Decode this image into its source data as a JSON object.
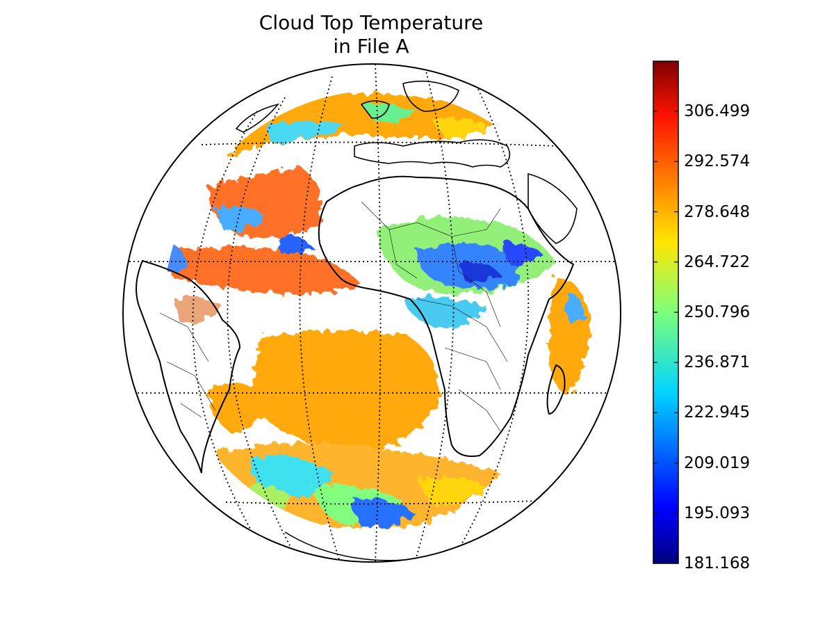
{
  "title": {
    "line1": "Cloud Top Temperature",
    "line2": "in File A"
  },
  "colorbar": {
    "colormap": "jet",
    "min": 181.168,
    "max": 320.4,
    "tick_labels": [
      "181.168",
      "195.093",
      "209.019",
      "222.945",
      "236.871",
      "250.796",
      "264.722",
      "278.648",
      "292.574",
      "306.499"
    ],
    "tick_values": [
      181.168,
      195.093,
      209.019,
      222.945,
      236.871,
      250.796,
      264.722,
      278.648,
      292.574,
      306.499
    ]
  },
  "map": {
    "projection": "orthographic",
    "center_lon": 0,
    "center_lat": 0,
    "graticule": "dotted",
    "regions_shown": [
      "Atlantic Ocean",
      "Africa",
      "South America",
      "Europe"
    ]
  }
}
